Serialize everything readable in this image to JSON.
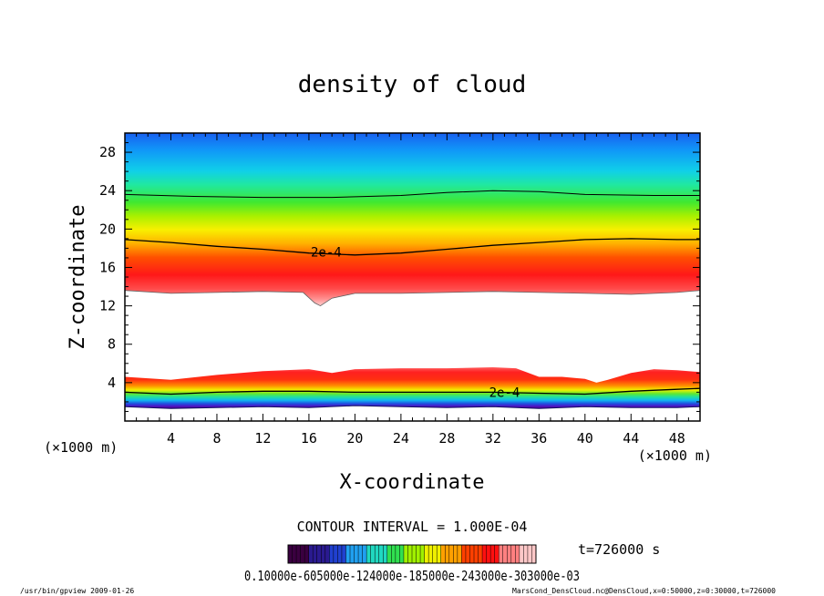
{
  "chart_data": {
    "type": "heatmap",
    "title": "density of cloud",
    "xlabel": "X-coordinate",
    "ylabel": "Z-coordinate",
    "x_unit_left": "(×1000 m)",
    "x_unit_right": "(×1000 m)",
    "xlim": [
      0,
      50
    ],
    "ylim": [
      0,
      30
    ],
    "x_ticks": [
      4,
      8,
      12,
      16,
      20,
      24,
      28,
      32,
      36,
      40,
      44,
      48
    ],
    "y_ticks": [
      4,
      8,
      12,
      16,
      20,
      24,
      28
    ],
    "contour_interval_text": "CONTOUR INTERVAL = 1.000E-04",
    "time_text": "t=726000 s",
    "contour_labels": [
      {
        "text": "2e-4",
        "x": 17.5,
        "y": 17.6
      },
      {
        "text": "2e-4",
        "x": 33.0,
        "y": 3.0
      }
    ],
    "colorbar": {
      "overlapping_labels_text": "0.10000e-605000e-124000e-185000e-243000e-303000e-03",
      "colors": [
        "#3a0040",
        "#2a1a90",
        "#2040d0",
        "#20a0f0",
        "#20d8c0",
        "#30e050",
        "#a0f000",
        "#f0f000",
        "#ffa000",
        "#ff4000",
        "#ff1010",
        "#ff8080",
        "#ffc8c8"
      ]
    },
    "upper_band": {
      "contour_2e4_z": [
        [
          0,
          18.9
        ],
        [
          4,
          18.6
        ],
        [
          8,
          18.2
        ],
        [
          12,
          17.9
        ],
        [
          16,
          17.5
        ],
        [
          20,
          17.3
        ],
        [
          24,
          17.5
        ],
        [
          28,
          17.9
        ],
        [
          32,
          18.3
        ],
        [
          36,
          18.6
        ],
        [
          40,
          18.9
        ],
        [
          44,
          19.0
        ],
        [
          48,
          18.9
        ],
        [
          50,
          18.9
        ]
      ],
      "top_contour_z": [
        [
          0,
          23.6
        ],
        [
          6,
          23.4
        ],
        [
          12,
          23.3
        ],
        [
          18,
          23.3
        ],
        [
          24,
          23.5
        ],
        [
          28,
          23.8
        ],
        [
          32,
          24.0
        ],
        [
          36,
          23.9
        ],
        [
          40,
          23.6
        ],
        [
          46,
          23.5
        ],
        [
          50,
          23.5
        ]
      ],
      "bottom_edge_z": [
        [
          0,
          13.6
        ],
        [
          4,
          13.3
        ],
        [
          8,
          13.4
        ],
        [
          12,
          13.5
        ],
        [
          15.5,
          13.4
        ],
        [
          16.5,
          12.3
        ],
        [
          17,
          12.0
        ],
        [
          18,
          12.8
        ],
        [
          20,
          13.3
        ],
        [
          24,
          13.3
        ],
        [
          28,
          13.4
        ],
        [
          32,
          13.5
        ],
        [
          36,
          13.4
        ],
        [
          40,
          13.3
        ],
        [
          44,
          13.2
        ],
        [
          48,
          13.4
        ],
        [
          50,
          13.6
        ]
      ]
    },
    "lower_band": {
      "top_edge_z": [
        [
          0,
          4.6
        ],
        [
          4,
          4.3
        ],
        [
          8,
          4.8
        ],
        [
          12,
          5.2
        ],
        [
          16,
          5.4
        ],
        [
          18,
          5.0
        ],
        [
          20,
          5.4
        ],
        [
          24,
          5.5
        ],
        [
          28,
          5.5
        ],
        [
          32,
          5.6
        ],
        [
          34,
          5.5
        ],
        [
          36,
          4.6
        ],
        [
          38,
          4.6
        ],
        [
          40,
          4.4
        ],
        [
          41,
          4.0
        ],
        [
          42,
          4.3
        ],
        [
          44,
          5.0
        ],
        [
          46,
          5.4
        ],
        [
          48,
          5.3
        ],
        [
          50,
          5.1
        ]
      ],
      "contour_2e4_z": [
        [
          0,
          3.0
        ],
        [
          4,
          2.8
        ],
        [
          8,
          3.0
        ],
        [
          12,
          3.1
        ],
        [
          16,
          3.1
        ],
        [
          20,
          3.0
        ],
        [
          24,
          3.0
        ],
        [
          28,
          3.0
        ],
        [
          32,
          3.0
        ],
        [
          36,
          2.9
        ],
        [
          40,
          2.8
        ],
        [
          44,
          3.1
        ],
        [
          48,
          3.3
        ],
        [
          50,
          3.4
        ]
      ],
      "bottom_edge_z": [
        [
          0,
          1.5
        ],
        [
          4,
          1.3
        ],
        [
          8,
          1.4
        ],
        [
          12,
          1.5
        ],
        [
          16,
          1.4
        ],
        [
          20,
          1.6
        ],
        [
          24,
          1.5
        ],
        [
          28,
          1.4
        ],
        [
          32,
          1.5
        ],
        [
          36,
          1.3
        ],
        [
          40,
          1.5
        ],
        [
          44,
          1.4
        ],
        [
          48,
          1.4
        ],
        [
          50,
          1.5
        ]
      ]
    }
  },
  "footer": {
    "program": "/usr/bin/gpview   2009-01-26",
    "source": "MarsCond_DensCloud.nc@DensCloud,x=0:50000,z=0:30000,t=726000"
  }
}
